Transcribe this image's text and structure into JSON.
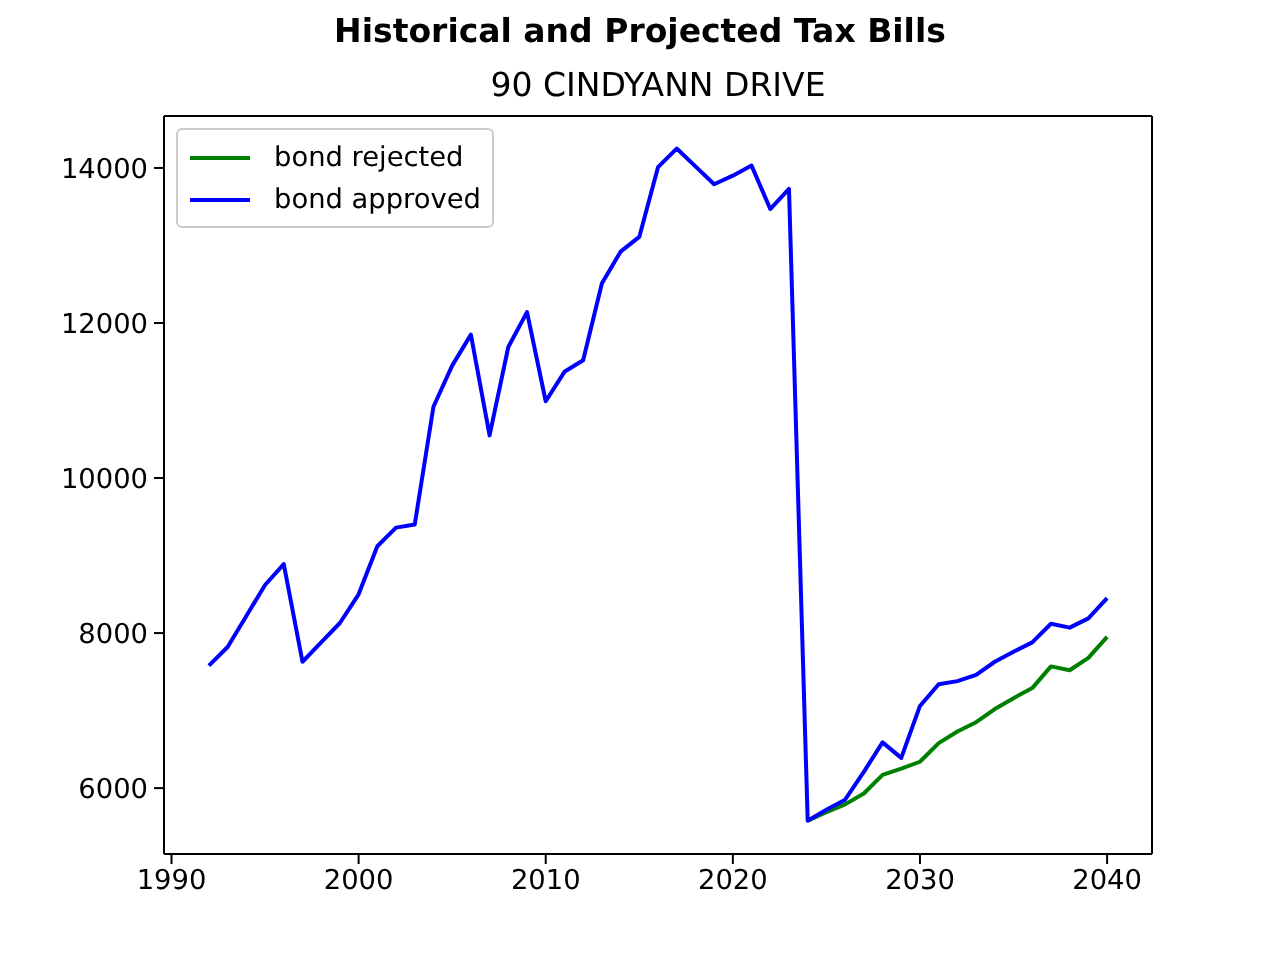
{
  "chart_data": {
    "type": "line",
    "title": "Historical and Projected Tax Bills",
    "subtitle": "90 CINDYANN DRIVE",
    "xlim": [
      1989.6,
      2042.4
    ],
    "ylim": [
      5150,
      14670
    ],
    "xticks": [
      1990,
      2000,
      2010,
      2020,
      2030,
      2040
    ],
    "yticks": [
      6000,
      8000,
      10000,
      12000,
      14000
    ],
    "legend": "top left",
    "series": [
      {
        "name": "bond rejected",
        "color": "#008000",
        "x": [
          2024,
          2025,
          2026,
          2027,
          2028,
          2029,
          2030,
          2031,
          2032,
          2033,
          2034,
          2035,
          2036,
          2037,
          2038,
          2039,
          2040
        ],
        "values": [
          5580,
          5690,
          5790,
          5930,
          6170,
          6250,
          6340,
          6580,
          6730,
          6850,
          7020,
          7160,
          7290,
          7570,
          7520,
          7680,
          7950
        ]
      },
      {
        "name": "bond approved",
        "color": "#0000ff",
        "x": [
          1992,
          1993,
          1994,
          1995,
          1996,
          1997,
          1998,
          1999,
          2000,
          2001,
          2002,
          2003,
          2004,
          2005,
          2006,
          2007,
          2008,
          2009,
          2010,
          2011,
          2012,
          2013,
          2014,
          2015,
          2016,
          2017,
          2018,
          2019,
          2020,
          2021,
          2022,
          2023,
          2024,
          2025,
          2026,
          2027,
          2028,
          2029,
          2030,
          2031,
          2032,
          2033,
          2034,
          2035,
          2036,
          2037,
          2038,
          2039,
          2040
        ],
        "values": [
          7580,
          7820,
          8220,
          8620,
          8890,
          7630,
          7880,
          8130,
          8500,
          9120,
          9360,
          9400,
          10920,
          11450,
          11850,
          10550,
          11690,
          12140,
          10990,
          11370,
          11520,
          12510,
          12920,
          13110,
          14010,
          14250,
          14020,
          13790,
          13900,
          14030,
          13470,
          13730,
          5580,
          5720,
          5850,
          6210,
          6590,
          6390,
          7060,
          7340,
          7380,
          7460,
          7630,
          7760,
          7880,
          8120,
          8070,
          8190,
          8450
        ]
      }
    ]
  }
}
